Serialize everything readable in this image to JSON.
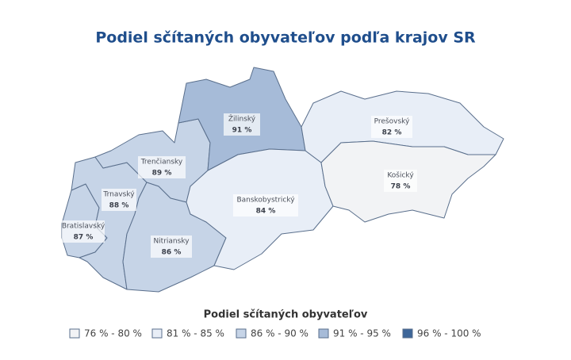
{
  "title": "Podiel sčítaných obyvateľov podľa krajov SR",
  "map": {
    "regions": [
      {
        "name": "Bratislavský",
        "value": 87,
        "value_label": "87 %"
      },
      {
        "name": "Trnavský",
        "value": 88,
        "value_label": "88 %"
      },
      {
        "name": "Trenčiansky",
        "value": 89,
        "value_label": "89 %"
      },
      {
        "name": "Nitriansky",
        "value": 86,
        "value_label": "86 %"
      },
      {
        "name": "Žilinský",
        "value": 91,
        "value_label": "91 %"
      },
      {
        "name": "Banskobystrický",
        "value": 84,
        "value_label": "84 %"
      },
      {
        "name": "Prešovský",
        "value": 82,
        "value_label": "82 %"
      },
      {
        "name": "Košický",
        "value": 78,
        "value_label": "78 %"
      }
    ]
  },
  "legend": {
    "title": "Podiel sčítaných obyvateľov",
    "items": [
      {
        "from": 76,
        "to": 80,
        "label": "76 % - 80 %",
        "color": "#f2f3f5"
      },
      {
        "from": 81,
        "to": 85,
        "label": "81 % - 85 %",
        "color": "#e8eef7"
      },
      {
        "from": 86,
        "to": 90,
        "label": "86 % - 90 %",
        "color": "#c6d4e7"
      },
      {
        "from": 91,
        "to": 95,
        "label": "91 % - 95 %",
        "color": "#a6bbd8"
      },
      {
        "from": 96,
        "to": 100,
        "label": "96 % - 100 %",
        "color": "#3d6699"
      }
    ]
  }
}
